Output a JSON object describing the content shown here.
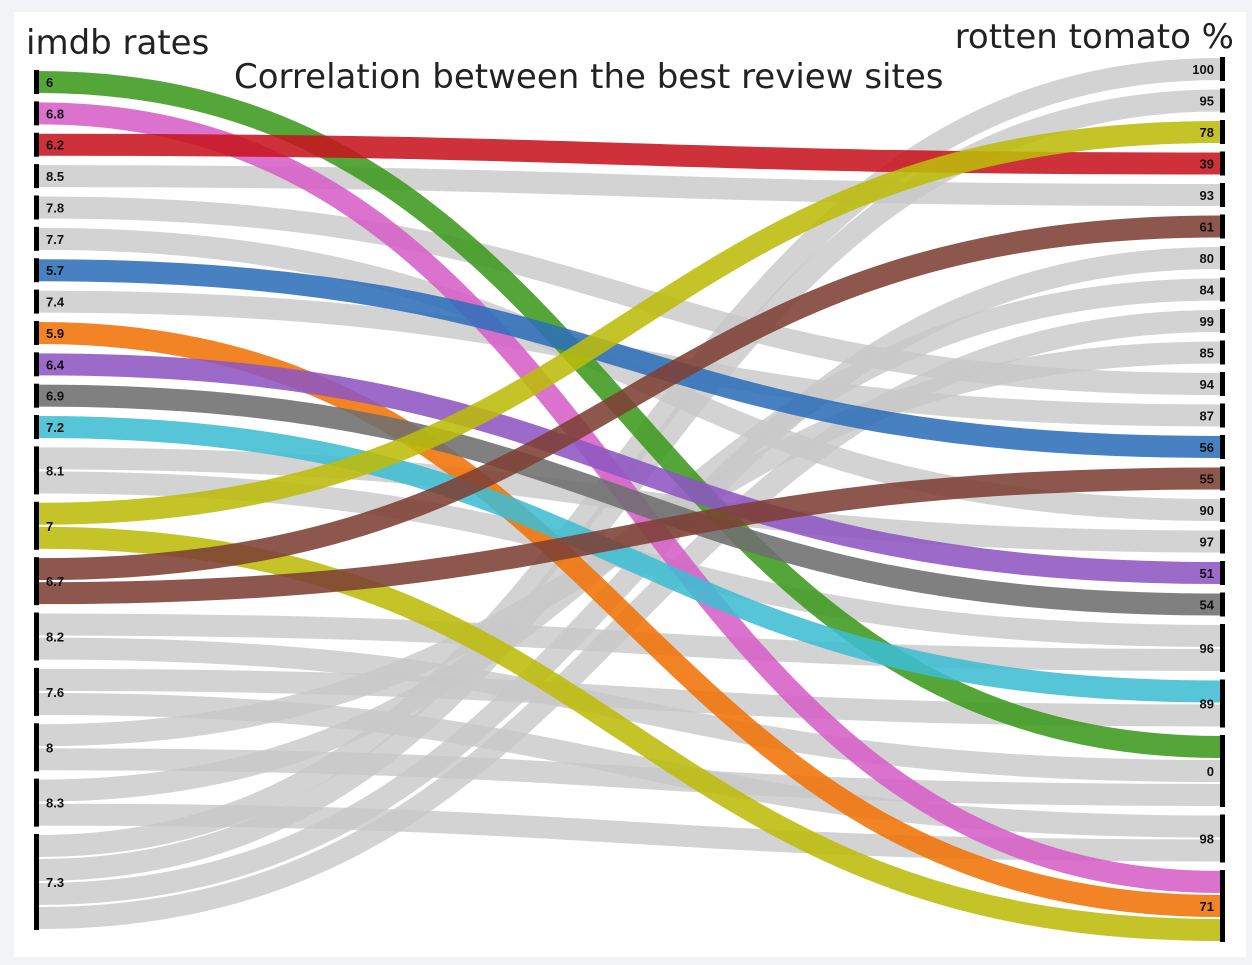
{
  "chart_data": {
    "type": "sankey",
    "title": "Correlation between the best review sites",
    "left_axis_label": "imdb rates",
    "right_axis_label": "rotten tomato %",
    "left_nodes": [
      "6",
      "6.8",
      "6.2",
      "8.5",
      "7.8",
      "7.7",
      "5.7",
      "7.4",
      "5.9",
      "6.4",
      "6.9",
      "7.2",
      "8.1",
      "7",
      "6.7",
      "8.2",
      "7.6",
      "8",
      "8.3",
      "7.3"
    ],
    "right_nodes": [
      "100",
      "95",
      "78",
      "39",
      "93",
      "61",
      "80",
      "84",
      "99",
      "85",
      "94",
      "87",
      "56",
      "55",
      "90",
      "97",
      "51",
      "54",
      "96",
      "89",
      "0",
      "98",
      "71"
    ],
    "links": [
      {
        "source": "6",
        "target": "0",
        "value": 1,
        "color": "#3c9a1e"
      },
      {
        "source": "6.8",
        "target": "71",
        "value": 1,
        "color": "#d660c7"
      },
      {
        "source": "6.2",
        "target": "39",
        "value": 1,
        "color": "#c7141e"
      },
      {
        "source": "8.5",
        "target": "93",
        "value": 1,
        "color": "#c8c8c8"
      },
      {
        "source": "7.8",
        "target": "94",
        "value": 1,
        "color": "#c8c8c8"
      },
      {
        "source": "7.7",
        "target": "90",
        "value": 1,
        "color": "#c8c8c8"
      },
      {
        "source": "5.7",
        "target": "56",
        "value": 1,
        "color": "#2f6fba"
      },
      {
        "source": "7.4",
        "target": "87",
        "value": 1,
        "color": "#c8c8c8"
      },
      {
        "source": "5.9",
        "target": "71",
        "value": 1,
        "color": "#f07308"
      },
      {
        "source": "6.4",
        "target": "51",
        "value": 1,
        "color": "#8e56c2"
      },
      {
        "source": "6.9",
        "target": "54",
        "value": 1,
        "color": "#6e6e6e"
      },
      {
        "source": "7.2",
        "target": "89",
        "value": 1,
        "color": "#3dbdd1"
      },
      {
        "source": "8.1",
        "target": "97",
        "value": 1,
        "color": "#c8c8c8"
      },
      {
        "source": "8.1",
        "target": "96",
        "value": 1,
        "color": "#c8c8c8"
      },
      {
        "source": "7",
        "target": "78",
        "value": 1,
        "color": "#bcbc0a"
      },
      {
        "source": "7",
        "target": "71",
        "value": 1,
        "color": "#bcbc0a"
      },
      {
        "source": "6.7",
        "target": "61",
        "value": 1,
        "color": "#7d4034"
      },
      {
        "source": "6.7",
        "target": "55",
        "value": 1,
        "color": "#7d4034"
      },
      {
        "source": "8.2",
        "target": "96",
        "value": 1,
        "color": "#c8c8c8"
      },
      {
        "source": "8.2",
        "target": "0",
        "value": 1,
        "color": "#c8c8c8"
      },
      {
        "source": "7.6",
        "target": "89",
        "value": 1,
        "color": "#c8c8c8"
      },
      {
        "source": "7.6",
        "target": "98",
        "value": 1,
        "color": "#c8c8c8"
      },
      {
        "source": "8",
        "target": "85",
        "value": 1,
        "color": "#c8c8c8"
      },
      {
        "source": "8",
        "target": "0",
        "value": 1,
        "color": "#c8c8c8"
      },
      {
        "source": "8.3",
        "target": "84",
        "value": 1,
        "color": "#c8c8c8"
      },
      {
        "source": "8.3",
        "target": "98",
        "value": 1,
        "color": "#c8c8c8"
      },
      {
        "source": "7.3",
        "target": "100",
        "value": 1,
        "color": "#c8c8c8"
      },
      {
        "source": "7.3",
        "target": "95",
        "value": 1,
        "color": "#c8c8c8"
      },
      {
        "source": "7.3",
        "target": "80",
        "value": 1,
        "color": "#c8c8c8"
      },
      {
        "source": "7.3",
        "target": "99",
        "value": 1,
        "color": "#c8c8c8"
      }
    ]
  }
}
